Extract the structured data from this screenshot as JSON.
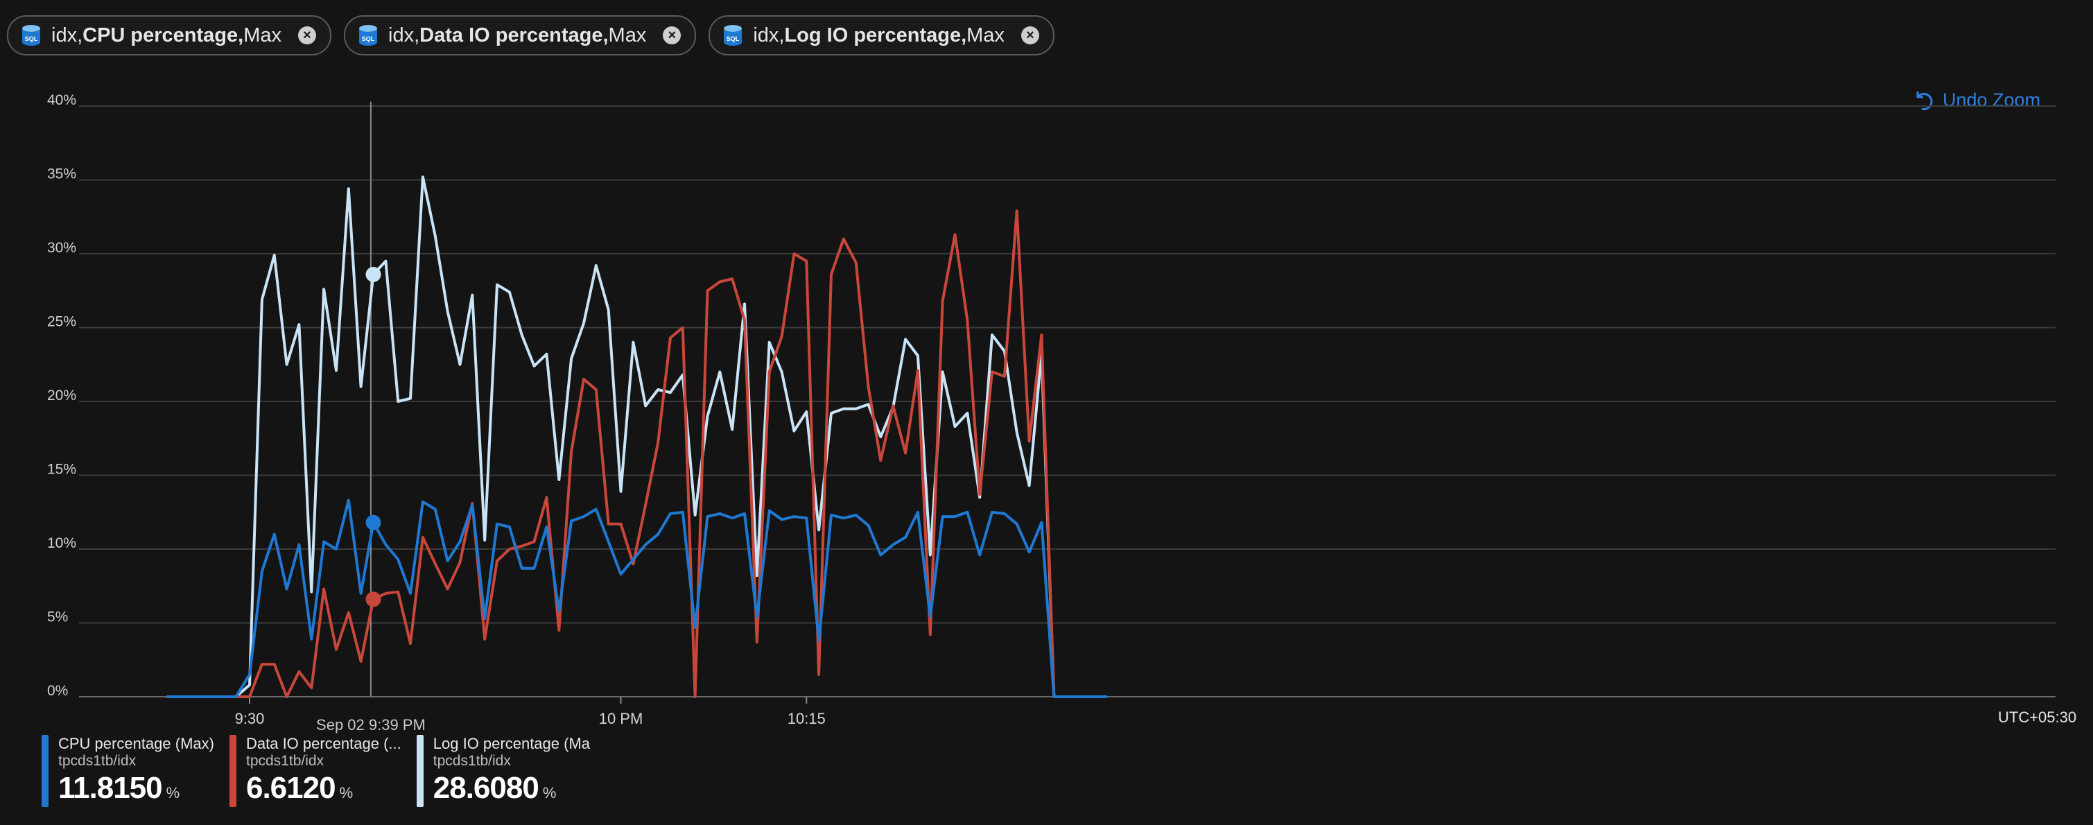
{
  "pills": [
    {
      "prefix": "idx, ",
      "metric": "CPU percentage,",
      "agg": " Max",
      "icon": "sql-database-icon"
    },
    {
      "prefix": "idx, ",
      "metric": "Data IO percentage,",
      "agg": " Max",
      "icon": "sql-database-icon"
    },
    {
      "prefix": "idx, ",
      "metric": "Log IO percentage,",
      "agg": " Max",
      "icon": "sql-database-icon"
    }
  ],
  "undo_zoom": {
    "label": "Undo Zoom",
    "icon": "undo-icon"
  },
  "timezone_label": "UTC+05:30",
  "cursor_label": "Sep 02 9:39 PM",
  "legend": [
    {
      "name": "CPU percentage (Max)",
      "sub": "tpcds1tb/idx",
      "value": "11.8150",
      "unit": "%",
      "color": "#1f78d1"
    },
    {
      "name": "Data IO percentage (...",
      "sub": "tpcds1tb/idx",
      "value": "6.6120",
      "unit": "%",
      "color": "#c9473a"
    },
    {
      "name": "Log IO percentage (Max)",
      "sub": "tpcds1tb/idx",
      "value": "28.6080",
      "unit": "%",
      "color": "#c9e3f7"
    }
  ],
  "chart_data": {
    "type": "line",
    "x_unit": "minutes after 9:30 PM",
    "ylim": [
      0,
      40
    ],
    "y_ticks": [
      "0%",
      "5%",
      "10%",
      "15%",
      "20%",
      "25%",
      "30%",
      "35%",
      "40%"
    ],
    "x_ticks": [
      {
        "label": "9:30",
        "t": 0
      },
      {
        "label": "10 PM",
        "t": 30
      },
      {
        "label": "10:15",
        "t": 45
      }
    ],
    "grid": true,
    "cursor_t": 9.8,
    "series": [
      {
        "name": "CPU percentage (Max)",
        "color": "#1f78d1",
        "points": [
          [
            -6.7,
            0
          ],
          [
            -1.1,
            0
          ],
          [
            0,
            1.5
          ],
          [
            1,
            8.5
          ],
          [
            2,
            11
          ],
          [
            3,
            7.3
          ],
          [
            4,
            10.3
          ],
          [
            5,
            3.9
          ],
          [
            6,
            10.5
          ],
          [
            7,
            10
          ],
          [
            8,
            13.3
          ],
          [
            9,
            7
          ],
          [
            10,
            11.8
          ],
          [
            11,
            10.3
          ],
          [
            12,
            9.3
          ],
          [
            13,
            7
          ],
          [
            14,
            13.2
          ],
          [
            15,
            12.7
          ],
          [
            16,
            9.2
          ],
          [
            17,
            10.5
          ],
          [
            18,
            13
          ],
          [
            19,
            5.3
          ],
          [
            20,
            11.7
          ],
          [
            21,
            11.5
          ],
          [
            22,
            8.7
          ],
          [
            23,
            8.7
          ],
          [
            24,
            11.5
          ],
          [
            25,
            5.8
          ],
          [
            26,
            11.9
          ],
          [
            27,
            12.2
          ],
          [
            28,
            12.7
          ],
          [
            29,
            10.5
          ],
          [
            30,
            8.3
          ],
          [
            31,
            9.3
          ],
          [
            32,
            10.3
          ],
          [
            33,
            11
          ],
          [
            34,
            12.4
          ],
          [
            35,
            12.5
          ],
          [
            36,
            4.7
          ],
          [
            37,
            12.2
          ],
          [
            38,
            12.4
          ],
          [
            39,
            12.1
          ],
          [
            40,
            12.4
          ],
          [
            41,
            5.4
          ],
          [
            42,
            12.6
          ],
          [
            43,
            12
          ],
          [
            44,
            12.2
          ],
          [
            45,
            12.1
          ],
          [
            46,
            3.8
          ],
          [
            47,
            12.3
          ],
          [
            48,
            12.1
          ],
          [
            49,
            12.3
          ],
          [
            50,
            11.6
          ],
          [
            51,
            9.6
          ],
          [
            52,
            10.3
          ],
          [
            53,
            10.8
          ],
          [
            54,
            12.5
          ],
          [
            55,
            5.4
          ],
          [
            56,
            12.2
          ],
          [
            57,
            12.2
          ],
          [
            58,
            12.5
          ],
          [
            59,
            9.6
          ],
          [
            60,
            12.5
          ],
          [
            61,
            12.4
          ],
          [
            62,
            11.7
          ],
          [
            63,
            9.8
          ],
          [
            64,
            11.8
          ],
          [
            65,
            0
          ],
          [
            69.3,
            0
          ]
        ]
      },
      {
        "name": "Data IO percentage (Max)",
        "color": "#c9473a",
        "points": [
          [
            -6.7,
            0
          ],
          [
            -1.1,
            0
          ],
          [
            0,
            0
          ],
          [
            1,
            2.2
          ],
          [
            2,
            2.2
          ],
          [
            3,
            0
          ],
          [
            4,
            1.7
          ],
          [
            5,
            0.6
          ],
          [
            6,
            7.3
          ],
          [
            7,
            3.2
          ],
          [
            8,
            5.7
          ],
          [
            9,
            2.4
          ],
          [
            10,
            6.6
          ],
          [
            11,
            7
          ],
          [
            12,
            7.1
          ],
          [
            13,
            3.6
          ],
          [
            14,
            10.8
          ],
          [
            15,
            9
          ],
          [
            16,
            7.3
          ],
          [
            17,
            9.1
          ],
          [
            18,
            13.1
          ],
          [
            19,
            3.9
          ],
          [
            20,
            9.2
          ],
          [
            21,
            10
          ],
          [
            22,
            10.2
          ],
          [
            23,
            10.5
          ],
          [
            24,
            13.5
          ],
          [
            25,
            4.5
          ],
          [
            26,
            16.6
          ],
          [
            27,
            21.5
          ],
          [
            28,
            20.8
          ],
          [
            29,
            11.7
          ],
          [
            30,
            11.7
          ],
          [
            31,
            9
          ],
          [
            32,
            13
          ],
          [
            33,
            17.2
          ],
          [
            34,
            24.3
          ],
          [
            35,
            25
          ],
          [
            36,
            0
          ],
          [
            37,
            27.5
          ],
          [
            38,
            28.1
          ],
          [
            39,
            28.3
          ],
          [
            40,
            25.5
          ],
          [
            41,
            3.7
          ],
          [
            42,
            22
          ],
          [
            43,
            24.4
          ],
          [
            44,
            30
          ],
          [
            45,
            29.5
          ],
          [
            46,
            1.5
          ],
          [
            47,
            28.6
          ],
          [
            48,
            31
          ],
          [
            49,
            29.4
          ],
          [
            50,
            21
          ],
          [
            51,
            16
          ],
          [
            52,
            19.7
          ],
          [
            53,
            16.5
          ],
          [
            54,
            22.1
          ],
          [
            55,
            4.2
          ],
          [
            56,
            26.8
          ],
          [
            57,
            31.3
          ],
          [
            58,
            25.5
          ],
          [
            59,
            13.7
          ],
          [
            60,
            22
          ],
          [
            61,
            21.7
          ],
          [
            62,
            32.9
          ],
          [
            63,
            17.3
          ],
          [
            64,
            24.5
          ],
          [
            65,
            0
          ],
          [
            69.3,
            0
          ]
        ]
      },
      {
        "name": "Log IO percentage (Max)",
        "color": "#c9e3f7",
        "points": [
          [
            -6.7,
            0
          ],
          [
            -1.1,
            0
          ],
          [
            0,
            0.8
          ],
          [
            1,
            26.9
          ],
          [
            2,
            29.9
          ],
          [
            3,
            22.5
          ],
          [
            4,
            25.2
          ],
          [
            5,
            7.1
          ],
          [
            6,
            27.6
          ],
          [
            7,
            22.1
          ],
          [
            8,
            34.4
          ],
          [
            9,
            21
          ],
          [
            10,
            28.6
          ],
          [
            11,
            29.5
          ],
          [
            12,
            20
          ],
          [
            13,
            20.2
          ],
          [
            14,
            35.2
          ],
          [
            15,
            31.2
          ],
          [
            16,
            26.1
          ],
          [
            17,
            22.5
          ],
          [
            18,
            27.2
          ],
          [
            19,
            10.6
          ],
          [
            20,
            27.9
          ],
          [
            21,
            27.4
          ],
          [
            22,
            24.5
          ],
          [
            23,
            22.4
          ],
          [
            24,
            23.2
          ],
          [
            25,
            14.7
          ],
          [
            26,
            22.9
          ],
          [
            27,
            25.3
          ],
          [
            28,
            29.2
          ],
          [
            29,
            26.2
          ],
          [
            30,
            13.9
          ],
          [
            31,
            24
          ],
          [
            32,
            19.7
          ],
          [
            33,
            20.8
          ],
          [
            34,
            20.6
          ],
          [
            35,
            21.8
          ],
          [
            36,
            12.3
          ],
          [
            37,
            19
          ],
          [
            38,
            22
          ],
          [
            39,
            18.1
          ],
          [
            40,
            26.6
          ],
          [
            41,
            8.2
          ],
          [
            42,
            24
          ],
          [
            43,
            22
          ],
          [
            44,
            18
          ],
          [
            45,
            19.3
          ],
          [
            46,
            11.3
          ],
          [
            47,
            19.2
          ],
          [
            48,
            19.5
          ],
          [
            49,
            19.5
          ],
          [
            50,
            19.8
          ],
          [
            51,
            17.6
          ],
          [
            52,
            19.6
          ],
          [
            53,
            24.2
          ],
          [
            54,
            23.1
          ],
          [
            55,
            9.6
          ],
          [
            56,
            22
          ],
          [
            57,
            18.3
          ],
          [
            58,
            19.2
          ],
          [
            59,
            13.5
          ],
          [
            60,
            24.5
          ],
          [
            61,
            23.4
          ],
          [
            62,
            17.9
          ],
          [
            63,
            14.3
          ],
          [
            64,
            23.3
          ],
          [
            65,
            0
          ],
          [
            69.3,
            0
          ]
        ]
      }
    ]
  }
}
